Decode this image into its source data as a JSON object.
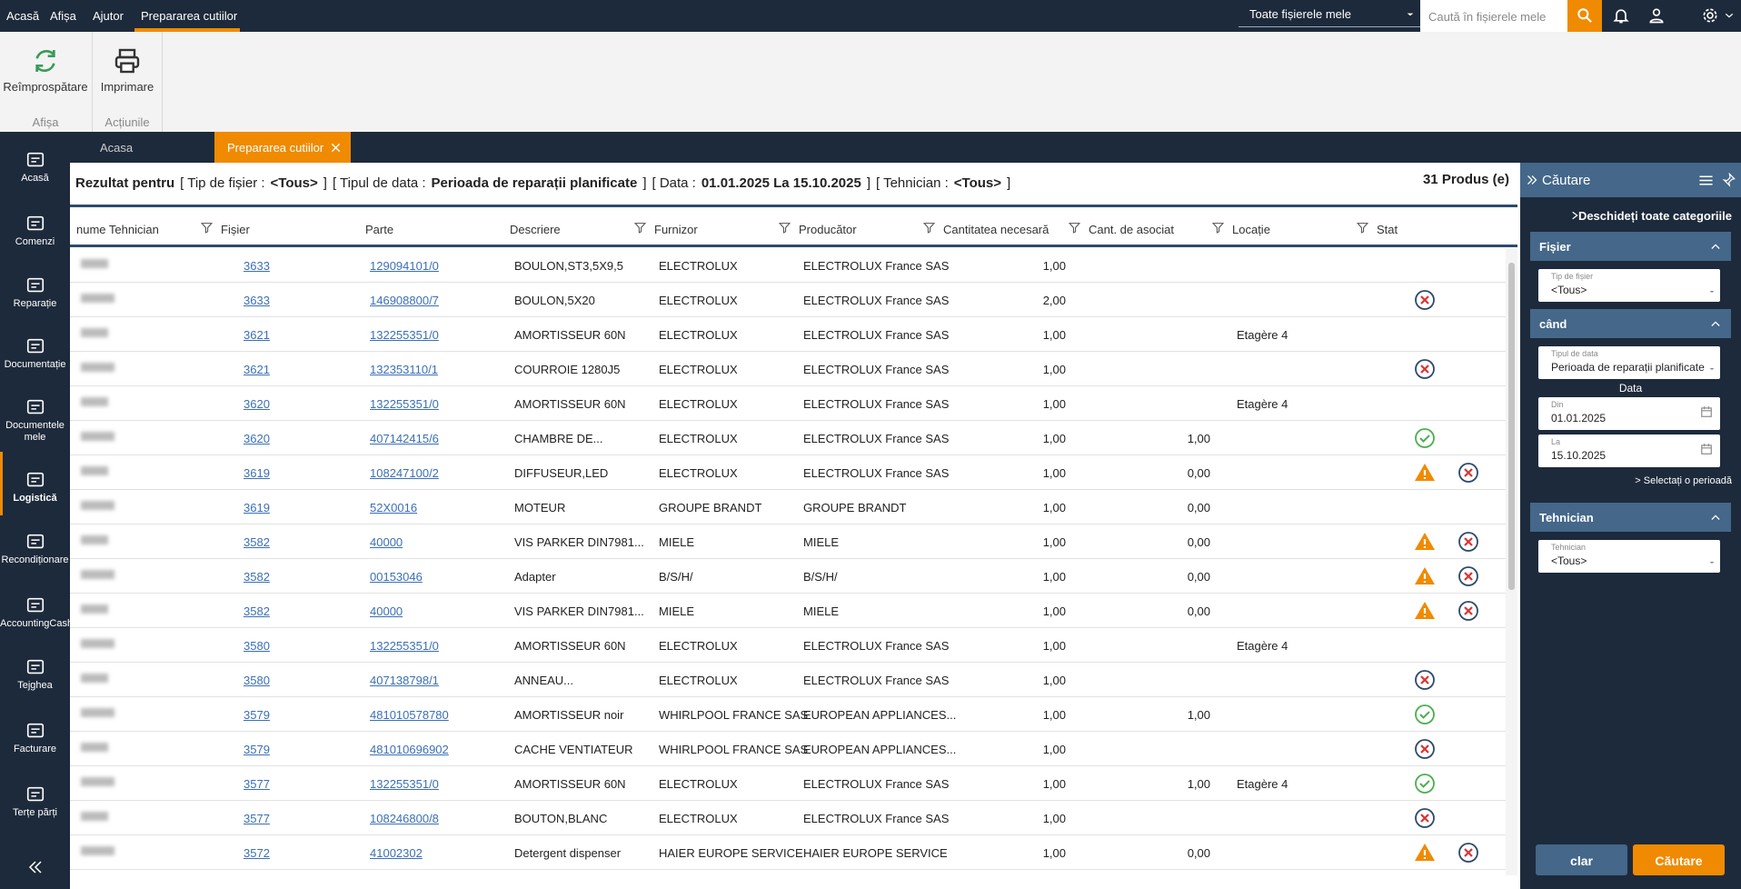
{
  "menu": {
    "items": [
      "Acasă",
      "Afișa",
      "Ajutor",
      "Prepararea cutiilor"
    ],
    "scope": "Toate fișierele mele",
    "search_placeholder": "Caută în fișierele mele"
  },
  "ribbon": {
    "buttons": [
      "Reîmprospătare",
      "Imprimare"
    ],
    "groups": [
      "Afișa",
      "Acțiunile"
    ]
  },
  "tabs": [
    "Acasa",
    "Prepararea cutiilor"
  ],
  "sidebar": [
    "Acasă",
    "Comenzi",
    "Reparație",
    "Documentație",
    "Documentele mele",
    "Logistică",
    "Recondiționare",
    "AccountingCash",
    "Tejghea",
    "Facturare",
    "Terțe părți"
  ],
  "results": {
    "title": "Rezultat pentru",
    "filters": [
      {
        "label": "[ Tip de fișier :",
        "value": "<Tous>",
        "close": "]"
      },
      {
        "label": "[ Tipul de data :",
        "value": "Perioada de reparații planificate",
        "close": "]"
      },
      {
        "label": "[ Data :",
        "value": "01.01.2025 La 15.10.2025",
        "close": "]"
      },
      {
        "label": "[ Tehnician :",
        "value": "<Tous>",
        "close": "]"
      }
    ],
    "count": "31 Produs (e)"
  },
  "table": {
    "columns": [
      "nume Tehnician",
      "Fișier",
      "Parte",
      "Descriere",
      "Furnizor",
      "Producător",
      "Cantitatea necesară",
      "Cant. de asociat",
      "Locație",
      "Stat"
    ],
    "rows": [
      {
        "cells": [
          "3633",
          "129094101/0",
          "BOULON,ST3,5X9,5",
          "ELECTROLUX",
          "ELECTROLUX France SAS",
          "1,00",
          null,
          null
        ],
        "status": []
      },
      {
        "cells": [
          "3633",
          "146908800/7",
          "BOULON,5X20",
          "ELECTROLUX",
          "ELECTROLUX France SAS",
          "2,00",
          null,
          null
        ],
        "status": [
          "x"
        ]
      },
      {
        "cells": [
          "3621",
          "132255351/0",
          "AMORTISSEUR  60N",
          "ELECTROLUX",
          "ELECTROLUX France SAS",
          "1,00",
          null,
          "Etagère 4"
        ],
        "status": []
      },
      {
        "cells": [
          "3621",
          "132353110/1",
          "COURROIE 1280J5",
          "ELECTROLUX",
          "ELECTROLUX France SAS",
          "1,00",
          null,
          null
        ],
        "status": [
          "x"
        ]
      },
      {
        "cells": [
          "3620",
          "132255351/0",
          "AMORTISSEUR  60N",
          "ELECTROLUX",
          "ELECTROLUX France SAS",
          "1,00",
          null,
          "Etagère 4"
        ],
        "status": []
      },
      {
        "cells": [
          "3620",
          "407142415/6",
          "CHAMBRE DE...",
          "ELECTROLUX",
          "ELECTROLUX France SAS",
          "1,00",
          "1,00",
          null
        ],
        "status": [
          "ok"
        ]
      },
      {
        "cells": [
          "3619",
          "108247100/2",
          "DIFFUSEUR,LED",
          "ELECTROLUX",
          "ELECTROLUX France SAS",
          "1,00",
          "0,00",
          null
        ],
        "status": [
          "warn",
          "x"
        ]
      },
      {
        "cells": [
          "3619",
          "52X0016",
          "MOTEUR",
          "GROUPE BRANDT",
          "GROUPE BRANDT",
          "1,00",
          "0,00",
          null
        ],
        "status": []
      },
      {
        "cells": [
          "3582",
          "40000",
          "VIS PARKER DIN7981...",
          "MIELE",
          "MIELE",
          "1,00",
          "0,00",
          null
        ],
        "status": [
          "warn",
          "x"
        ]
      },
      {
        "cells": [
          "3582",
          "00153046",
          "Adapter",
          "B/S/H/",
          "B/S/H/",
          "1,00",
          "0,00",
          null
        ],
        "status": [
          "warn",
          "x"
        ]
      },
      {
        "cells": [
          "3582",
          "40000",
          "VIS PARKER DIN7981...",
          "MIELE",
          "MIELE",
          "1,00",
          "0,00",
          null
        ],
        "status": [
          "warn",
          "x"
        ]
      },
      {
        "cells": [
          "3580",
          "132255351/0",
          "AMORTISSEUR  60N",
          "ELECTROLUX",
          "ELECTROLUX France SAS",
          "1,00",
          null,
          "Etagère 4"
        ],
        "status": []
      },
      {
        "cells": [
          "3580",
          "407138798/1",
          "ANNEAU...",
          "ELECTROLUX",
          "ELECTROLUX France SAS",
          "1,00",
          null,
          null
        ],
        "status": [
          "x"
        ]
      },
      {
        "cells": [
          "3579",
          "481010578780",
          "AMORTISSEUR noir",
          "WHIRLPOOL FRANCE SAS",
          "EUROPEAN APPLIANCES...",
          "1,00",
          "1,00",
          null
        ],
        "status": [
          "ok"
        ]
      },
      {
        "cells": [
          "3579",
          "481010696902",
          "CACHE VENTIATEUR",
          "WHIRLPOOL FRANCE SAS",
          "EUROPEAN APPLIANCES...",
          "1,00",
          null,
          null
        ],
        "status": [
          "x"
        ]
      },
      {
        "cells": [
          "3577",
          "132255351/0",
          "AMORTISSEUR  60N",
          "ELECTROLUX",
          "ELECTROLUX France SAS",
          "1,00",
          "1,00",
          "Etagère 4"
        ],
        "status": [
          "ok"
        ]
      },
      {
        "cells": [
          "3577",
          "108246800/8",
          "BOUTON,BLANC",
          "ELECTROLUX",
          "ELECTROLUX France SAS",
          "1,00",
          null,
          null
        ],
        "status": [
          "x"
        ]
      },
      {
        "cells": [
          "3572",
          "41002302",
          "Detergent dispenser",
          "HAIER EUROPE SERVICE",
          "HAIER EUROPE SERVICE",
          "1,00",
          "0,00",
          null
        ],
        "status": [
          "warn",
          "x"
        ]
      }
    ]
  },
  "search_panel": {
    "title": "Căutare",
    "open_all": "Deschideți toate categoriile",
    "sections": [
      {
        "title": "Fișier",
        "fields": [
          {
            "label": "Tip de fișier",
            "value": "<Tous>"
          }
        ]
      },
      {
        "title": "când",
        "fields": [
          {
            "label": "Tipul de data",
            "value": "Perioada de reparații planificate"
          }
        ],
        "date_title": "Data",
        "dates": [
          {
            "label": "Din",
            "value": "01.01.2025"
          },
          {
            "label": "La",
            "value": "15.10.2025"
          }
        ],
        "period_link": "> Selectați o perioadă"
      },
      {
        "title": "Tehnician",
        "fields": [
          {
            "label": "Tehnician",
            "value": "<Tous>"
          }
        ]
      }
    ],
    "buttons": [
      "clar",
      "Căutare"
    ]
  }
}
